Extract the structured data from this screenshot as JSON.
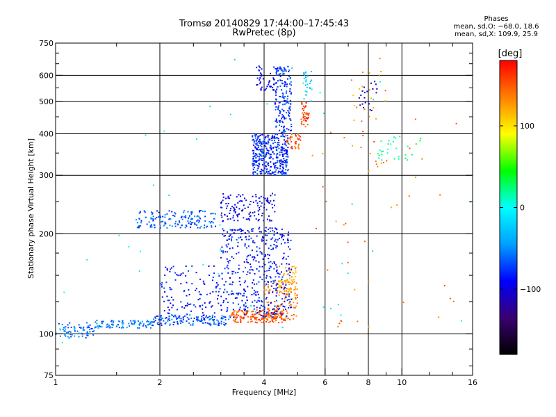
{
  "chart_data": {
    "type": "scatter",
    "title": "Tromsø 20140829 17:44:00–17:45:43",
    "subtitle": "RwPretec (8p)",
    "xlabel": "Frequency [MHz]",
    "ylabel": "Stationary phase Virtual Height [km]",
    "x_scale": "log",
    "y_scale": "log",
    "xlim": [
      1,
      16
    ],
    "ylim": [
      75,
      750
    ],
    "x_ticks": [
      1,
      2,
      4,
      6,
      8,
      10,
      16
    ],
    "x_tick_labels": [
      "1",
      "2",
      "4",
      "6",
      "8",
      "10",
      "16"
    ],
    "y_ticks": [
      75,
      100,
      200,
      300,
      400,
      500,
      600,
      750
    ],
    "y_tick_labels": [
      "75",
      "100",
      "200",
      "300",
      "400",
      "500",
      "600",
      "750"
    ],
    "grid": true,
    "stats": {
      "header": "Phases",
      "line_o": "mean, sd,O: −68.0, 18.6",
      "line_x": "mean, sd,X: 109.9, 25.9"
    },
    "colorbar": {
      "label": "[deg]",
      "range": [
        -180,
        180
      ],
      "ticks": [
        100,
        0,
        -100
      ],
      "tick_labels": [
        "100",
        "0",
        "−100"
      ],
      "colors": [
        "#000000",
        "#3a0070",
        "#0000ff",
        "#00a0ff",
        "#00ffff",
        "#00ff00",
        "#ffff00",
        "#ff8000",
        "#ff0000"
      ]
    },
    "series": [
      {
        "f_range": [
          1.0,
          1.3
        ],
        "h_range": [
          97,
          108
        ],
        "phase": -60,
        "n": 70
      },
      {
        "f_range": [
          1.3,
          1.9
        ],
        "h_range": [
          104,
          110
        ],
        "phase": -55,
        "n": 90
      },
      {
        "f_range": [
          1.9,
          3.2
        ],
        "h_range": [
          106,
          114
        ],
        "phase": -65,
        "n": 140
      },
      {
        "f_range": [
          3.2,
          4.6
        ],
        "h_range": [
          108,
          118
        ],
        "phase": 150,
        "n": 170
      },
      {
        "f_range": [
          4.0,
          5.0
        ],
        "h_range": [
          110,
          145
        ],
        "phase": 140,
        "n": 110
      },
      {
        "f_range": [
          4.4,
          5.0
        ],
        "h_range": [
          130,
          160
        ],
        "phase": 120,
        "n": 60
      },
      {
        "f_range": [
          3.0,
          4.8
        ],
        "h_range": [
          112,
          210
        ],
        "phase": -85,
        "n": 420
      },
      {
        "f_range": [
          2.0,
          3.0
        ],
        "h_range": [
          110,
          160
        ],
        "phase": -90,
        "n": 120
      },
      {
        "f_range": [
          1.7,
          2.9
        ],
        "h_range": [
          208,
          235
        ],
        "phase": -65,
        "n": 150
      },
      {
        "f_range": [
          3.0,
          4.3
        ],
        "h_range": [
          218,
          265
        ],
        "phase": -95,
        "n": 130
      },
      {
        "f_range": [
          3.7,
          4.7
        ],
        "h_range": [
          300,
          400
        ],
        "phase": -80,
        "n": 360
      },
      {
        "f_range": [
          4.3,
          4.8
        ],
        "h_range": [
          400,
          640
        ],
        "phase": -75,
        "n": 170
      },
      {
        "f_range": [
          3.8,
          4.3
        ],
        "h_range": [
          540,
          640
        ],
        "phase": -95,
        "n": 45
      },
      {
        "f_range": [
          4.6,
          5.1
        ],
        "h_range": [
          360,
          400
        ],
        "phase": 150,
        "n": 35
      },
      {
        "f_range": [
          5.1,
          5.4
        ],
        "h_range": [
          420,
          500
        ],
        "phase": 160,
        "n": 40
      },
      {
        "f_range": [
          5.2,
          5.5
        ],
        "h_range": [
          500,
          620
        ],
        "phase": -30,
        "n": 25
      },
      {
        "f_range": [
          7.0,
          9.0
        ],
        "h_range": [
          300,
          680
        ],
        "phase": 130,
        "n": 30
      },
      {
        "f_range": [
          7.5,
          8.5
        ],
        "h_range": [
          470,
          620
        ],
        "phase": -110,
        "n": 20
      },
      {
        "f_range": [
          8.5,
          11.5
        ],
        "h_range": [
          330,
          400
        ],
        "phase": 20,
        "n": 30
      },
      {
        "f_range": [
          5.5,
          15.0
        ],
        "h_range": [
          100,
          450
        ],
        "phase": 140,
        "n": 40
      },
      {
        "f_range": [
          1.0,
          16.0
        ],
        "h_range": [
          90,
          700
        ],
        "phase": 0,
        "n": 40
      }
    ]
  }
}
